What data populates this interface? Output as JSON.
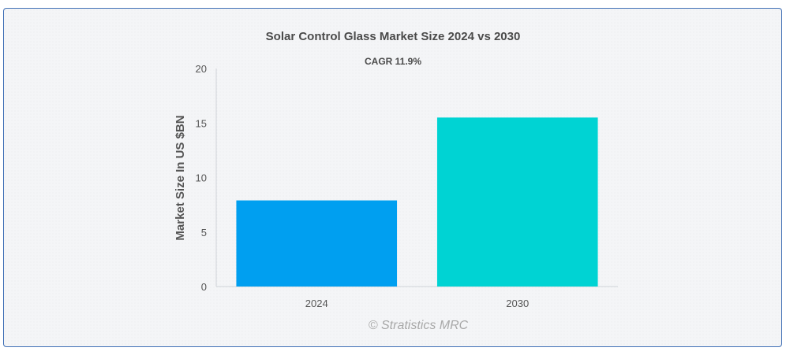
{
  "chart_data": {
    "type": "bar",
    "title": "Solar Control Glass Market Size 2024 vs 2030",
    "subtitle": "CAGR 11.9%",
    "categories": [
      "2024",
      "2030"
    ],
    "values": [
      7.9,
      15.5
    ],
    "colors": [
      "#009ff0",
      "#00d3d3"
    ],
    "xlabel": "",
    "ylabel": "Market Size In US $BN",
    "ylim": [
      0,
      20
    ],
    "yticks": [
      "0",
      "5",
      "10",
      "15",
      "20"
    ],
    "grid": false,
    "legend": "none",
    "credit": "© Stratistics MRC"
  }
}
